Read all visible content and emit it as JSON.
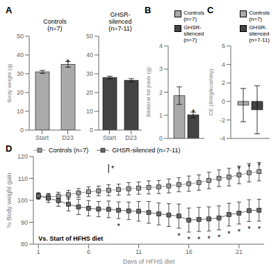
{
  "chart_data": [
    {
      "type": "bar",
      "title": "A",
      "subtitle": "Controls\n(n=7)",
      "categories": [
        "Start",
        "D23"
      ],
      "values": [
        31.0,
        35.0
      ],
      "errors": [
        0.8,
        1.5
      ],
      "color": "#aaaaaa",
      "ylabel": "Body weight (g)",
      "ylim": [
        0,
        50
      ],
      "yticks": [
        0,
        10,
        20,
        30,
        40,
        50
      ],
      "grid": false,
      "annotations": [
        {
          "text": "*",
          "x": "D23",
          "y": 37.3
        }
      ]
    },
    {
      "type": "bar",
      "subtitle": "GHSR-\nsilenced\n(n=7-11)",
      "categories": [
        "Start",
        "D23"
      ],
      "values": [
        28.0,
        26.5
      ],
      "errors": [
        0.7,
        0.9
      ],
      "color": "#444444",
      "ylim": [
        0,
        50
      ],
      "yticks": [
        0,
        10,
        20,
        30,
        40,
        50
      ],
      "grid": false
    },
    {
      "type": "bar",
      "title": "B",
      "categories": [
        null
      ],
      "series": [
        {
          "name": "Controls\n(n=7)",
          "color": "#aaaaaa",
          "values": [
            1.85
          ],
          "errors": [
            0.38
          ]
        },
        {
          "name": "GHSR-\nsilenced\n(n=7)",
          "color": "#444444",
          "values": [
            1.02
          ],
          "errors": [
            0.12
          ]
        }
      ],
      "ylabel": "Bilateral fat pads (g)",
      "ylim": [
        0,
        4
      ],
      "yticks": [
        0,
        1,
        2,
        3,
        4
      ],
      "tick_labels": "y",
      "legend": "upper right",
      "grid": false,
      "annotations": [
        {
          "text": "*",
          "series": "GHSR-\nsilenced\n(n=7)",
          "y": 1.22
        }
      ]
    },
    {
      "type": "bar",
      "title": "C",
      "categories": [
        null
      ],
      "series": [
        {
          "name": "Controls\n(n=7)",
          "color": "#aaaaaa",
          "values": [
            -0.4
          ],
          "errors": [
            1.8
          ]
        },
        {
          "name": "GHSR-\nsilenced\n(n=7-11)",
          "color": "#444444",
          "values": [
            -0.9
          ],
          "errors": [
            2.6
          ]
        }
      ],
      "ylabel": "CE (BWg/kcal/day)",
      "ylim": [
        -4,
        6
      ],
      "yticks": [
        -4,
        -2,
        0,
        2,
        4,
        6
      ],
      "tick_labels": "y",
      "legend": "upper right",
      "grid": false
    },
    {
      "type": "line",
      "title": "D",
      "x": [
        1,
        2,
        3,
        4,
        5,
        6,
        7,
        8,
        9,
        10,
        11,
        12,
        13,
        14,
        15,
        16,
        17,
        18,
        19,
        20,
        21,
        22,
        23
      ],
      "series": [
        {
          "name": "Controls (n=7)",
          "color": "#999999",
          "marker": "square",
          "values": [
            102.0,
            101.6,
            101.9,
            102.6,
            103.4,
            103.9,
            104.3,
            104.6,
            104.9,
            105.3,
            105.6,
            105.9,
            106.1,
            106.6,
            107.1,
            107.6,
            108.1,
            109.1,
            110.1,
            110.6,
            111.6,
            112.6,
            113.1
          ],
          "errors": [
            1.2,
            1.5,
            1.8,
            2.0,
            2.0,
            2.2,
            2.2,
            2.5,
            2.5,
            2.8,
            2.8,
            3.0,
            3.0,
            3.2,
            3.2,
            3.5,
            3.5,
            3.8,
            3.8,
            4.0,
            4.0,
            4.2,
            4.2
          ]
        },
        {
          "name": "GHSR-silenced (n=7-11)",
          "color": "#666666",
          "marker": "square",
          "values": [
            102.0,
            101.0,
            99.8,
            98.2,
            97.0,
            96.4,
            96.0,
            95.9,
            95.5,
            95.2,
            95.0,
            94.5,
            93.8,
            93.3,
            92.8,
            91.0,
            91.3,
            91.5,
            92.0,
            93.5,
            94.2,
            95.3,
            95.5
          ],
          "errors": [
            1.5,
            2.0,
            2.5,
            3.0,
            3.5,
            3.5,
            3.5,
            3.8,
            3.8,
            4.0,
            4.5,
            5.0,
            5.0,
            5.2,
            5.5,
            5.5,
            5.5,
            5.5,
            5.5,
            5.2,
            5.0,
            5.0,
            5.0
          ]
        }
      ],
      "xlabel": "Days of HFHS diet",
      "ylabel": "% Body weight gain",
      "xlim": [
        0.5,
        23.5
      ],
      "xticks": [
        1,
        6,
        11,
        16,
        21
      ],
      "ylim": [
        80,
        120
      ],
      "yticks": [
        80,
        90,
        100,
        110,
        120
      ],
      "legend": "upper left",
      "grid": false,
      "annotations": [
        {
          "text": "*",
          "x": 9,
          "y": 90.5
        },
        {
          "text": "*",
          "x": 15,
          "y": 86.1
        },
        {
          "text": "*",
          "x": 16,
          "y": 84.3
        },
        {
          "text": "*",
          "x": 17,
          "y": 84.6
        },
        {
          "text": "*",
          "x": 18,
          "y": 84.8
        },
        {
          "text": "*",
          "x": 19,
          "y": 85.3
        },
        {
          "text": "*",
          "x": 20,
          "y": 87.1
        },
        {
          "text": "*",
          "x": 21,
          "y": 88.0
        },
        {
          "text": "*",
          "x": 22,
          "y": 89.1
        },
        {
          "text": "*",
          "x": 23,
          "y": 89.3
        },
        {
          "text": "*",
          "x": 21,
          "y": 116.1
        },
        {
          "text": "*",
          "x": 22,
          "y": 117.3
        },
        {
          "text": "*",
          "x": 23,
          "y": 117.8
        },
        {
          "text": "*",
          "x": 8.4,
          "y": 114.5
        },
        {
          "text": "Vs. Start of HFHS diet",
          "x": 1.0,
          "y": 81.5
        }
      ],
      "lines": [
        {
          "x": [
            8.0,
            8.0
          ],
          "y": [
            112.5,
            116.5
          ]
        }
      ]
    }
  ]
}
